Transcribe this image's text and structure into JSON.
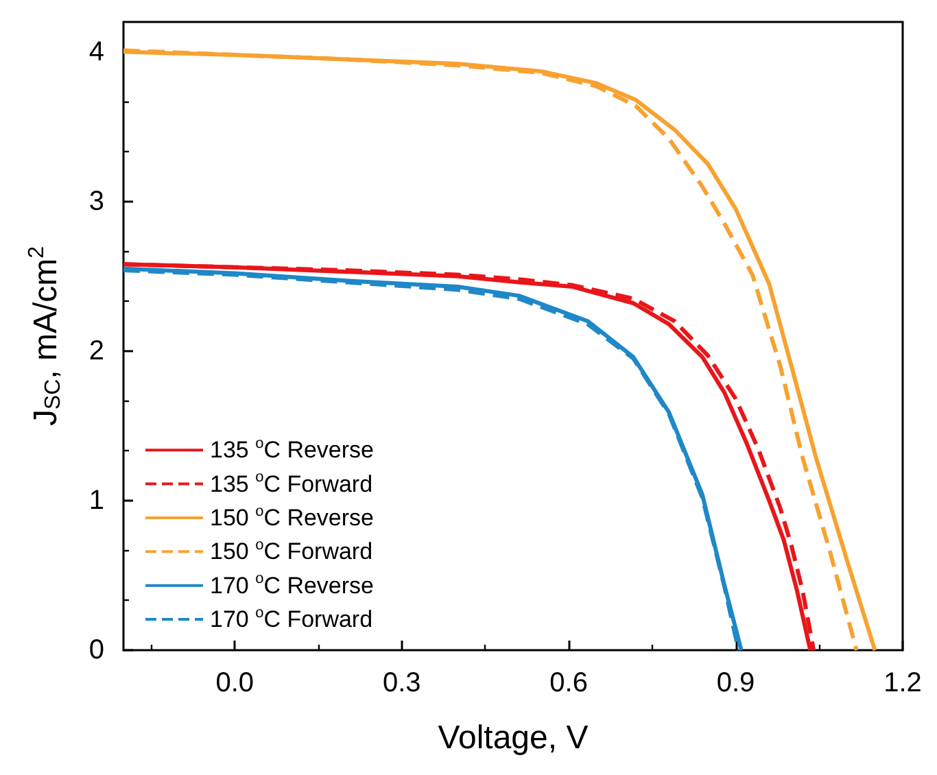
{
  "chart_data": {
    "type": "line",
    "xlabel": "Voltage, V",
    "ylabel": "J$_{SC}$, mA/cm$^{2}$",
    "xlim": [
      -0.2,
      1.2
    ],
    "ylim": [
      0,
      4.2
    ],
    "xticks": [
      {
        "value": 0,
        "label": "0.0"
      },
      {
        "value": 0.3,
        "label": "0.3"
      },
      {
        "value": 0.6,
        "label": "0.6"
      },
      {
        "value": 0.9,
        "label": "0.9"
      },
      {
        "value": 1.2,
        "label": "1.2"
      }
    ],
    "yticks": [
      0,
      1,
      2,
      3,
      4
    ],
    "grid": false,
    "legend": "bottom left",
    "marker": "none",
    "series": [
      {
        "name": "135 $^{o}$C Reverse",
        "color": "#e8161a",
        "line_style": "solid",
        "x": [
          -0.2,
          0,
          0.2,
          0.4,
          0.51,
          0.607,
          0.716,
          0.78,
          0.84,
          0.88,
          0.92,
          0.96,
          0.986,
          1.01,
          1.034
        ],
        "values": [
          2.58,
          2.56,
          2.53,
          2.5,
          2.46,
          2.43,
          2.32,
          2.18,
          1.96,
          1.72,
          1.38,
          1.0,
          0.74,
          0.4,
          0
        ]
      },
      {
        "name": "135 $^{o}$C Forward",
        "color": "#e8161a",
        "line_style": "dashed",
        "x": [
          -0.2,
          0,
          0.2,
          0.4,
          0.51,
          0.607,
          0.716,
          0.79,
          0.85,
          0.9,
          0.94,
          0.98,
          1.0,
          1.02,
          1.04
        ],
        "values": [
          2.58,
          2.56,
          2.54,
          2.51,
          2.48,
          2.44,
          2.35,
          2.2,
          1.97,
          1.68,
          1.35,
          0.95,
          0.7,
          0.4,
          0
        ]
      },
      {
        "name": "150 $^{o}$C Reverse",
        "color": "#f7a230",
        "line_style": "solid",
        "x": [
          -0.2,
          0,
          0.2,
          0.4,
          0.55,
          0.65,
          0.72,
          0.79,
          0.85,
          0.9,
          0.96,
          1.0,
          1.044,
          1.1,
          1.15
        ],
        "values": [
          4.0,
          3.98,
          3.95,
          3.92,
          3.87,
          3.79,
          3.68,
          3.48,
          3.25,
          2.95,
          2.45,
          1.9,
          1.29,
          0.6,
          0
        ]
      },
      {
        "name": "150 $^{o}$C Forward",
        "color": "#f7a230",
        "line_style": "dashed",
        "x": [
          -0.2,
          0,
          0.2,
          0.4,
          0.55,
          0.65,
          0.72,
          0.78,
          0.84,
          0.88,
          0.93,
          0.98,
          1.02,
          1.07,
          1.117
        ],
        "values": [
          4.01,
          3.98,
          3.95,
          3.91,
          3.86,
          3.77,
          3.64,
          3.42,
          3.1,
          2.85,
          2.51,
          1.9,
          1.29,
          0.65,
          0
        ]
      },
      {
        "name": "170 $^{o}$C Reverse",
        "color": "#1e88c8",
        "line_style": "solid",
        "x": [
          -0.2,
          0,
          0.2,
          0.4,
          0.51,
          0.634,
          0.716,
          0.78,
          0.84,
          0.88,
          0.91
        ],
        "values": [
          2.55,
          2.52,
          2.47,
          2.43,
          2.37,
          2.2,
          1.96,
          1.59,
          1.04,
          0.43,
          0
        ]
      },
      {
        "name": "170 $^{o}$C Forward",
        "color": "#1e88c8",
        "line_style": "dashed",
        "x": [
          -0.2,
          0,
          0.2,
          0.4,
          0.51,
          0.634,
          0.716,
          0.78,
          0.84,
          0.88,
          0.905
        ],
        "values": [
          2.54,
          2.51,
          2.46,
          2.41,
          2.35,
          2.18,
          1.95,
          1.58,
          1.02,
          0.42,
          0
        ]
      }
    ]
  }
}
